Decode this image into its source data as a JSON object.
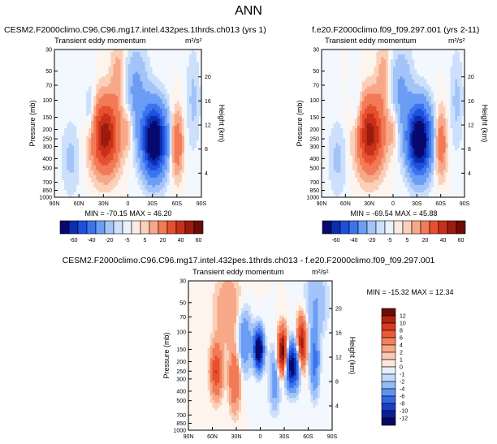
{
  "page_title": "ANN",
  "colorbar_bottom": {
    "labels": [
      "-60",
      "-40",
      "-20",
      "-5",
      "5",
      "20",
      "40",
      "60"
    ],
    "colors": [
      "#08086e",
      "#0b2dae",
      "#1e4fdc",
      "#3c73ee",
      "#6b9df5",
      "#a3c4f8",
      "#cde0fb",
      "#e9f2fd",
      "#fdebe3",
      "#fbd0b9",
      "#f7a888",
      "#f27a57",
      "#e6502f",
      "#c9301a",
      "#9b1b0e",
      "#6d0b06"
    ]
  },
  "colorbar_diff": {
    "labels": [
      "12",
      "10",
      "8",
      "6",
      "4",
      "2",
      "1",
      "0",
      "-1",
      "-2",
      "-4",
      "-6",
      "-8",
      "-10",
      "-12"
    ],
    "colors": [
      "#6d0b06",
      "#b0240f",
      "#d83a1f",
      "#ec5a35",
      "#f4805c",
      "#f8a988",
      "#fbc9b1",
      "#fde6da",
      "#e6f0fc",
      "#c3d9f9",
      "#94bbf5",
      "#5f95ef",
      "#3569e3",
      "#1a3fc4",
      "#0a1f96",
      "#060a65"
    ]
  },
  "chart_data": [
    {
      "type": "heatmap",
      "title": "CESM2.F2000climo.C96.C96.mg17.intel.432pes.1thrds.ch013 (yrs 1)",
      "subtitle": "Transient eddy momentum",
      "units": "m²/s²",
      "xlabel": "",
      "ylabel": "Pressure (mb)",
      "y2label": "Height (km)",
      "x_ticks": [
        "90N",
        "60N",
        "30N",
        "0",
        "30S",
        "60S",
        "90S"
      ],
      "y_ticks": [
        "30",
        "50",
        "70",
        "100",
        "150",
        "200",
        "250",
        "300",
        "400",
        "500",
        "700",
        "850",
        "1000"
      ],
      "y2_ticks": [
        "20",
        "16",
        "12",
        "8",
        "4"
      ],
      "stats": "MIN = -70.15   MAX = 46.20",
      "min": -70.15,
      "max": 46.2,
      "features": [
        {
          "lat": 28,
          "p": 230,
          "value": 46.2,
          "sx": 11,
          "sy": 0.55
        },
        {
          "lat": -32,
          "p": 260,
          "value": -70.15,
          "sx": 10,
          "sy": 0.55
        },
        {
          "lat": -60,
          "p": 280,
          "value": 18,
          "sx": 5,
          "sy": 0.5
        },
        {
          "lat": 0,
          "p": 200,
          "value": 8,
          "sx": 4,
          "sy": 0.35
        },
        {
          "lat": 45,
          "p": 150,
          "value": -10,
          "sx": 5,
          "sy": 0.5
        },
        {
          "lat": -10,
          "p": 80,
          "value": -12,
          "sx": 10,
          "sy": 0.7
        },
        {
          "lat": 12,
          "p": 60,
          "value": 8,
          "sx": 6,
          "sy": 0.6
        },
        {
          "lat": 70,
          "p": 400,
          "value": -6,
          "sx": 8,
          "sy": 0.6
        },
        {
          "lat": -80,
          "p": 100,
          "value": -6,
          "sx": 6,
          "sy": 0.8
        }
      ]
    },
    {
      "type": "heatmap",
      "title": "f.e20.F2000climo.f09_f09.297.001 (yrs 2-11)",
      "subtitle": "Transient eddy momentum",
      "units": "m²/s²",
      "xlabel": "",
      "ylabel": "Pressure (mb)",
      "y2label": "Height (km)",
      "x_ticks": [
        "90N",
        "60N",
        "30N",
        "0",
        "30S",
        "60S",
        "90S"
      ],
      "y_ticks": [
        "30",
        "50",
        "70",
        "100",
        "150",
        "200",
        "250",
        "300",
        "400",
        "500",
        "700",
        "850",
        "1000"
      ],
      "y2_ticks": [
        "20",
        "16",
        "12",
        "8",
        "4"
      ],
      "stats": "MIN = -69.54   MAX = 45.88",
      "min": -69.54,
      "max": 45.88,
      "features": [
        {
          "lat": 29,
          "p": 225,
          "value": 45.88,
          "sx": 11,
          "sy": 0.55
        },
        {
          "lat": -33,
          "p": 255,
          "value": -69.54,
          "sx": 10,
          "sy": 0.55
        },
        {
          "lat": -60,
          "p": 280,
          "value": 17,
          "sx": 5,
          "sy": 0.5
        },
        {
          "lat": 0,
          "p": 200,
          "value": 7,
          "sx": 4,
          "sy": 0.35
        },
        {
          "lat": 45,
          "p": 150,
          "value": -9,
          "sx": 5,
          "sy": 0.5
        },
        {
          "lat": -10,
          "p": 80,
          "value": -11,
          "sx": 10,
          "sy": 0.7
        },
        {
          "lat": 12,
          "p": 60,
          "value": 8,
          "sx": 6,
          "sy": 0.6
        },
        {
          "lat": 70,
          "p": 400,
          "value": -6,
          "sx": 8,
          "sy": 0.6
        },
        {
          "lat": -80,
          "p": 100,
          "value": -6,
          "sx": 6,
          "sy": 0.8
        }
      ]
    },
    {
      "type": "heatmap",
      "title": "CESM2.F2000climo.C96.C96.mg17.intel.432pes.1thrds.ch013 - f.e20.F2000climo.f09_f09.297.001",
      "subtitle": "Transient eddy momentum",
      "units": "m²/s²",
      "xlabel": "",
      "ylabel": "Pressure (mb)",
      "y2label": "Height (km)",
      "x_ticks": [
        "90N",
        "60N",
        "30N",
        "0",
        "30S",
        "60S",
        "90S"
      ],
      "y_ticks": [
        "30",
        "50",
        "70",
        "100",
        "150",
        "200",
        "250",
        "300",
        "400",
        "500",
        "700",
        "850",
        "1000"
      ],
      "y2_ticks": [
        "20",
        "16",
        "12",
        "8",
        "4"
      ],
      "stats": "MIN = -15.32   MAX = 12.34",
      "min": -15.32,
      "max": 12.34,
      "features": [
        {
          "lat": 2,
          "p": 150,
          "value": -15.32,
          "sx": 4,
          "sy": 0.3
        },
        {
          "lat": -40,
          "p": 220,
          "value": -12,
          "sx": 6,
          "sy": 0.35
        },
        {
          "lat": -28,
          "p": 160,
          "value": 12.34,
          "sx": 4,
          "sy": 0.35
        },
        {
          "lat": -52,
          "p": 130,
          "value": 9,
          "sx": 4,
          "sy": 0.4
        },
        {
          "lat": 55,
          "p": 250,
          "value": 6,
          "sx": 5,
          "sy": 0.4
        },
        {
          "lat": 32,
          "p": 300,
          "value": 4,
          "sx": 5,
          "sy": 0.5
        },
        {
          "lat": 20,
          "p": 120,
          "value": -4,
          "sx": 6,
          "sy": 0.5
        },
        {
          "lat": -68,
          "p": 200,
          "value": -5,
          "sx": 4,
          "sy": 0.5
        },
        {
          "lat": -18,
          "p": 300,
          "value": -3,
          "sx": 5,
          "sy": 0.5
        },
        {
          "lat": 40,
          "p": 60,
          "value": 2,
          "sx": 12,
          "sy": 0.6
        },
        {
          "lat": -70,
          "p": 50,
          "value": -2,
          "sx": 10,
          "sy": 0.6
        }
      ]
    }
  ]
}
